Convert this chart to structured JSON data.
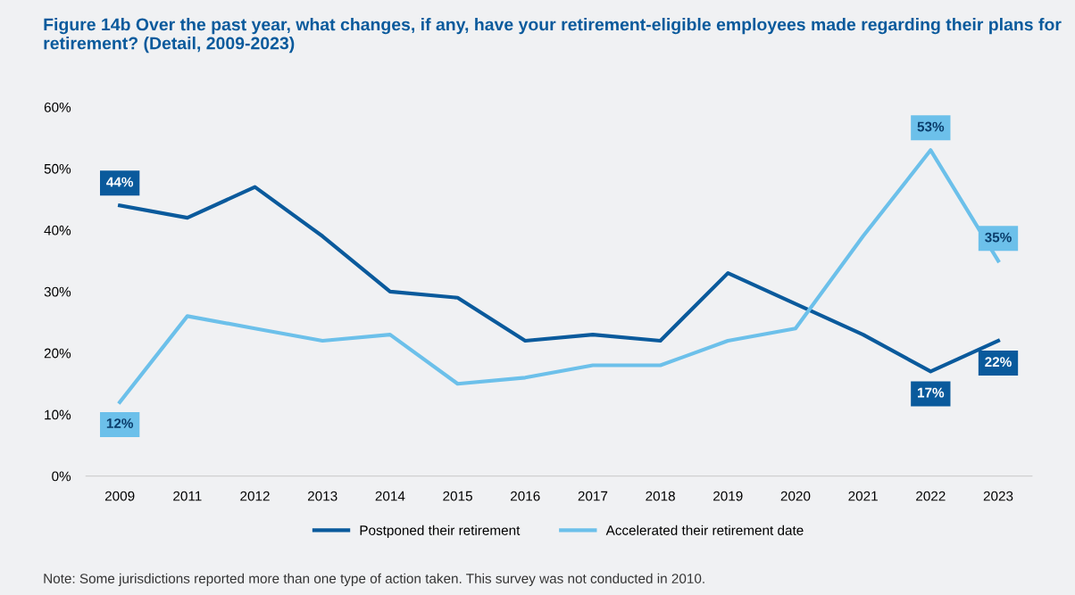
{
  "chart_data": {
    "type": "line",
    "title": "Figure 14b Over the past year, what changes, if any, have your retirement-eligible employees made regarding their plans for retirement? (Detail, 2009-2023)",
    "categories": [
      "2009",
      "2011",
      "2012",
      "2013",
      "2014",
      "2015",
      "2016",
      "2017",
      "2018",
      "2019",
      "2020",
      "2021",
      "2022",
      "2023"
    ],
    "series": [
      {
        "name": "Postponed their retirement",
        "color": "#0a5a9c",
        "values": [
          44,
          42,
          47,
          39,
          30,
          29,
          22,
          23,
          22,
          33,
          28,
          23,
          17,
          22
        ],
        "value_labels": [
          "44%",
          null,
          null,
          null,
          null,
          null,
          null,
          null,
          null,
          null,
          null,
          null,
          "17%",
          "22%"
        ]
      },
      {
        "name": "Accelerated their retirement date",
        "color": "#6cc0ea",
        "values": [
          12,
          26,
          24,
          22,
          23,
          15,
          16,
          18,
          18,
          22,
          24,
          39,
          53,
          35
        ],
        "value_labels": [
          "12%",
          null,
          null,
          null,
          null,
          null,
          null,
          null,
          null,
          null,
          null,
          null,
          "53%",
          "35%"
        ]
      }
    ],
    "ylim": [
      0,
      60
    ],
    "yticks": [
      {
        "value": 0,
        "label": "0%"
      },
      {
        "value": 10,
        "label": "10%"
      },
      {
        "value": 20,
        "label": "20%"
      },
      {
        "value": 30,
        "label": "30%"
      },
      {
        "value": 40,
        "label": "40%"
      },
      {
        "value": 50,
        "label": "50%"
      },
      {
        "value": 60,
        "label": "60%"
      }
    ],
    "legend": "bottom",
    "annotations": [
      "Note: Some jurisdictions reported more than one type of action taken. This survey was not conducted in 2010."
    ]
  }
}
